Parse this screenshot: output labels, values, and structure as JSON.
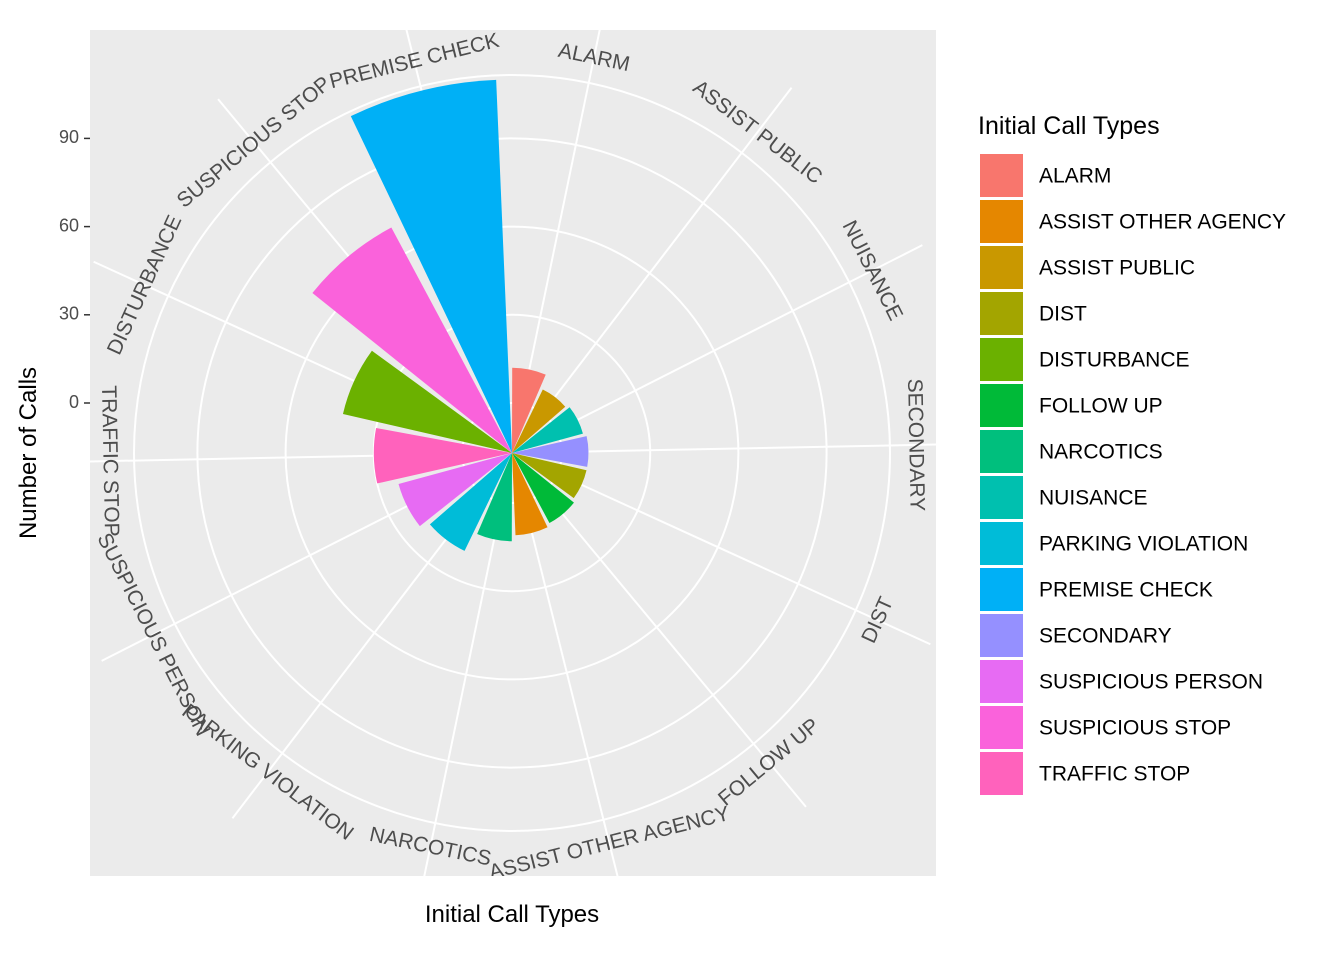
{
  "chart_data": {
    "type": "bar",
    "coord": "polar",
    "xlabel": "Initial Call Types",
    "ylabel": "Number of Calls",
    "yticks": [
      0,
      30,
      60,
      90
    ],
    "categories": [
      "ALARM",
      "ASSIST PUBLIC",
      "NUISANCE",
      "SECONDARY",
      "DIST",
      "FOLLOW UP",
      "ASSIST OTHER AGENCY",
      "NARCOTICS",
      "PARKING VIOLATION",
      "SUSPICIOUS PERSON",
      "TRAFFIC STOP",
      "DISTURBANCE",
      "SUSPICIOUS STOP",
      "PREMISE CHECK"
    ],
    "values": [
      12,
      7,
      8,
      9,
      9,
      10,
      11,
      13,
      20,
      23,
      30,
      42,
      70,
      110
    ],
    "colors": {
      "ALARM": "#F8766D",
      "ASSIST OTHER AGENCY": "#E58700",
      "ASSIST PUBLIC": "#C99800",
      "DIST": "#A3A500",
      "DISTURBANCE": "#6BB100",
      "FOLLOW UP": "#00BA38",
      "NARCOTICS": "#00BF7D",
      "NUISANCE": "#00C0AF",
      "PARKING VIOLATION": "#00BCD8",
      "PREMISE CHECK": "#00B0F6",
      "SECONDARY": "#9590FF",
      "SUSPICIOUS PERSON": "#E76BF3",
      "SUSPICIOUS STOP": "#FA62DB",
      "TRAFFIC STOP": "#FF62BC"
    },
    "legend": {
      "title": "Initial Call Types",
      "position": "right",
      "items": [
        "ALARM",
        "ASSIST OTHER AGENCY",
        "ASSIST PUBLIC",
        "DIST",
        "DISTURBANCE",
        "FOLLOW UP",
        "NARCOTICS",
        "NUISANCE",
        "PARKING VIOLATION",
        "PREMISE CHECK",
        "SECONDARY",
        "SUSPICIOUS PERSON",
        "SUSPICIOUS STOP",
        "TRAFFIC STOP"
      ]
    },
    "panel_background": "#EBEBEB",
    "grid": true
  }
}
